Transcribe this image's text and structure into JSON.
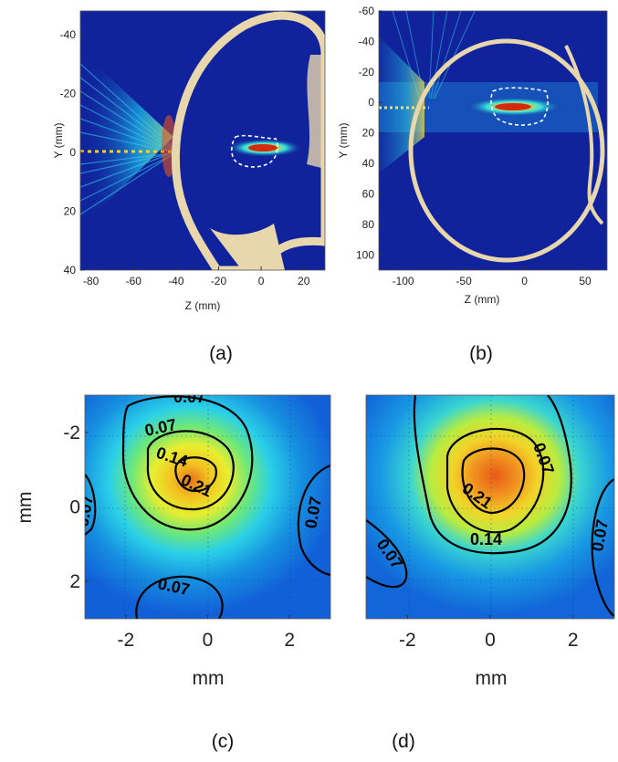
{
  "chart_data": [
    {
      "type": "heatmap",
      "panel": "(a)",
      "title": "",
      "xlabel": "Z (mm)",
      "ylabel": "Y (mm)",
      "xlim": [
        -85,
        30
      ],
      "ylim": [
        -48,
        40
      ],
      "x_ticks": [
        "-80",
        "-60",
        "-40",
        "-20",
        "0",
        "20"
      ],
      "y_ticks": [
        "-40",
        "-20",
        "0",
        "20",
        "40"
      ],
      "focal_spot": {
        "z": -2,
        "y": 0
      },
      "colormap": "jet",
      "background_color": "#10239c",
      "skull_color": "#e8d6ad"
    },
    {
      "type": "heatmap",
      "panel": "(b)",
      "title": "",
      "xlabel": "Z (mm)",
      "ylabel": "Y (mm)",
      "xlim": [
        -120,
        68
      ],
      "ylim": [
        -60,
        110
      ],
      "x_ticks": [
        "-100",
        "-50",
        "0",
        "50"
      ],
      "y_ticks": [
        "-60",
        "-40",
        "-20",
        "0",
        "20",
        "40",
        "60",
        "80",
        "100"
      ],
      "focal_spot": {
        "z": -5,
        "y": 0
      },
      "colormap": "jet",
      "background_color": "#10239c",
      "skull_color": "#e8d6ad"
    },
    {
      "type": "heatmap",
      "panel": "(c)",
      "title": "",
      "xlabel": "mm",
      "ylabel": "mm",
      "xlim": [
        -3,
        3
      ],
      "ylim": [
        -3,
        3
      ],
      "x_ticks": [
        "-2",
        "0",
        "2"
      ],
      "y_ticks": [
        "-2",
        "0",
        "2"
      ],
      "peak": {
        "x": -0.3,
        "y": -0.8
      },
      "contour_labels": [
        "0.07",
        "0.07",
        "0.14",
        "0.21",
        "0.07",
        "0.07",
        "0.07"
      ],
      "colormap": "jet"
    },
    {
      "type": "heatmap",
      "panel": "(d)",
      "title": "",
      "xlabel": "mm",
      "ylabel": "",
      "xlim": [
        -3,
        3
      ],
      "ylim": [
        -3,
        3
      ],
      "x_ticks": [
        "-2",
        "0",
        "2"
      ],
      "y_ticks": [],
      "peak": {
        "x": 0.1,
        "y": -0.6
      },
      "contour_labels": [
        "0.07",
        "0.21",
        "0.14",
        "0.07",
        "0.07"
      ],
      "colormap": "jet"
    }
  ],
  "captions": [
    "(a)",
    "(b)",
    "(c)",
    "(d)"
  ]
}
